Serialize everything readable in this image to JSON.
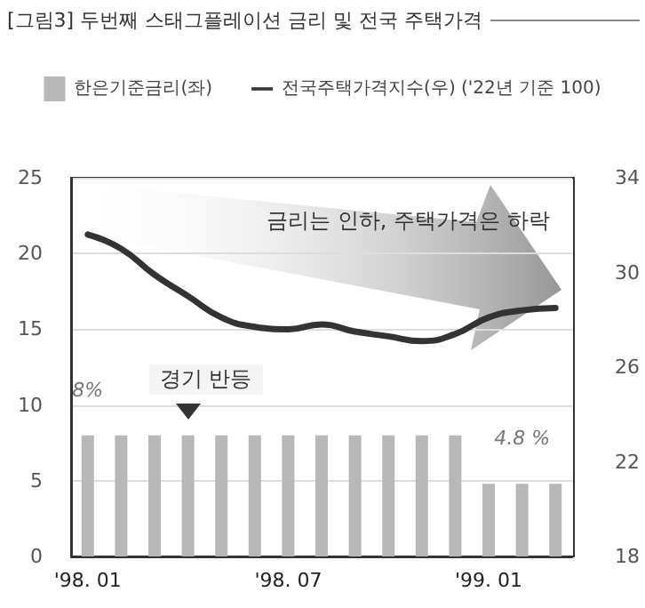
{
  "chart_data": {
    "type": "bar",
    "title": "[그림3] 두번째 스태그플레이션  금리 및 전국 주택가격",
    "categories": [
      "'98. 01",
      null,
      null,
      null,
      null,
      null,
      "'98. 07",
      null,
      null,
      null,
      null,
      null,
      "'99. 01",
      null,
      null
    ],
    "series": [
      {
        "name": "한은기준금리(좌)",
        "color": "#b8b8b8",
        "values": [
          8,
          8,
          8,
          8,
          8,
          8,
          8,
          8,
          8,
          8,
          8,
          8,
          4.8,
          4.8,
          4.8
        ],
        "value_labels": [
          "8%",
          null,
          null,
          null,
          null,
          null,
          null,
          null,
          null,
          null,
          null,
          null,
          null,
          "4.8 %",
          null
        ]
      },
      {
        "name": "전국주택가격지수(우) ('22년 기준 100)",
        "type": "line",
        "axis": "y2",
        "color": "#333333",
        "values": [
          31.6,
          31.0,
          29.9,
          29.0,
          28.1,
          27.7,
          27.6,
          27.8,
          27.5,
          27.3,
          27.1,
          27.4,
          28.1,
          28.4,
          28.5
        ]
      }
    ],
    "ylim": [
      0,
      25
    ],
    "yticks": [
      0,
      5,
      10,
      15,
      20,
      25
    ],
    "y2lim": [
      18,
      34
    ],
    "y2ticks": [
      18,
      22,
      26,
      30,
      34
    ],
    "grid": "y",
    "legend": "top",
    "marker": "none",
    "line_style": "solid",
    "annotations": [
      "금리는 인하, 주택가격은 하락",
      "경기 반등"
    ]
  }
}
